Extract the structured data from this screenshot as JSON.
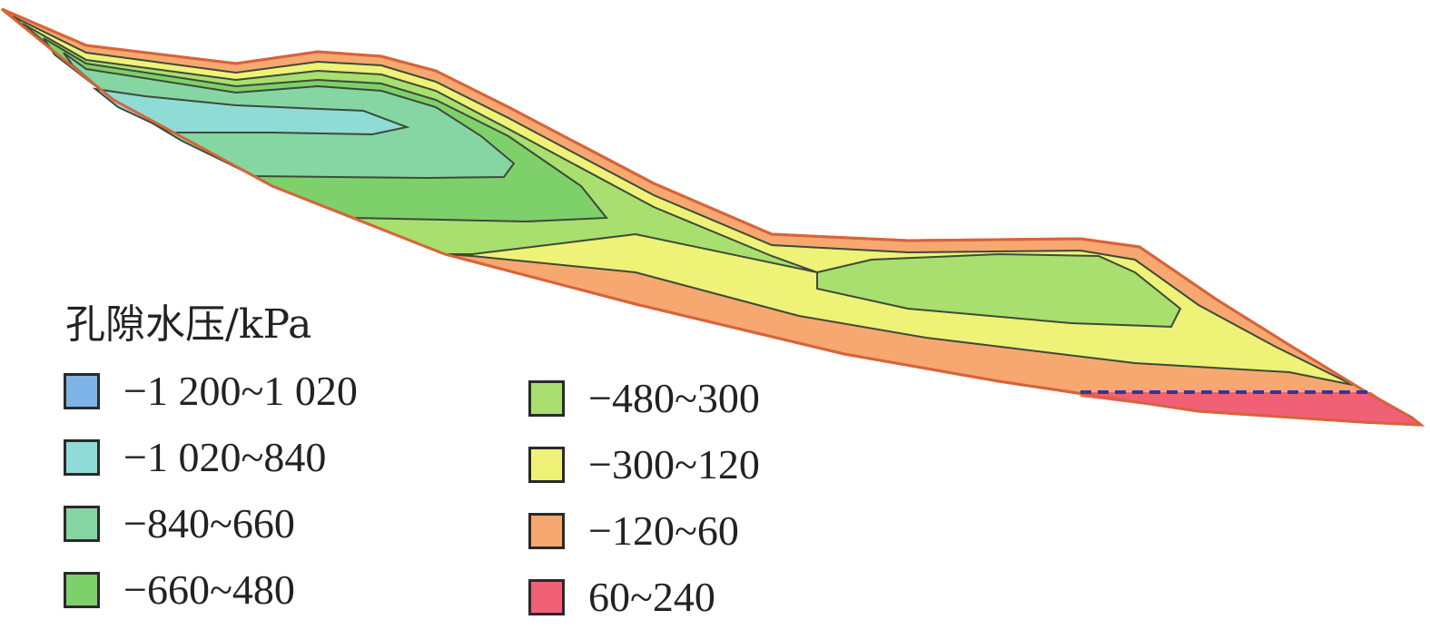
{
  "legend": {
    "title": "孔隙水压/kPa",
    "items": [
      {
        "label": "−1 200~1 020",
        "color": "#7fb4e8"
      },
      {
        "label": "−1 020~840",
        "color": "#8fdbd6"
      },
      {
        "label": "−840~660",
        "color": "#86d6a3"
      },
      {
        "label": "−660~480",
        "color": "#7ed06a"
      },
      {
        "label": "−480~300",
        "color": "#a8df6e"
      },
      {
        "label": "−300~120",
        "color": "#eef277"
      },
      {
        "label": "−120~60",
        "color": "#f6a870"
      },
      {
        "label": "60~240",
        "color": "#f06076"
      }
    ]
  },
  "colors": {
    "outline": "#d8633a",
    "contour": "#3d4a3a",
    "water_table": "#2b3a9e"
  }
}
